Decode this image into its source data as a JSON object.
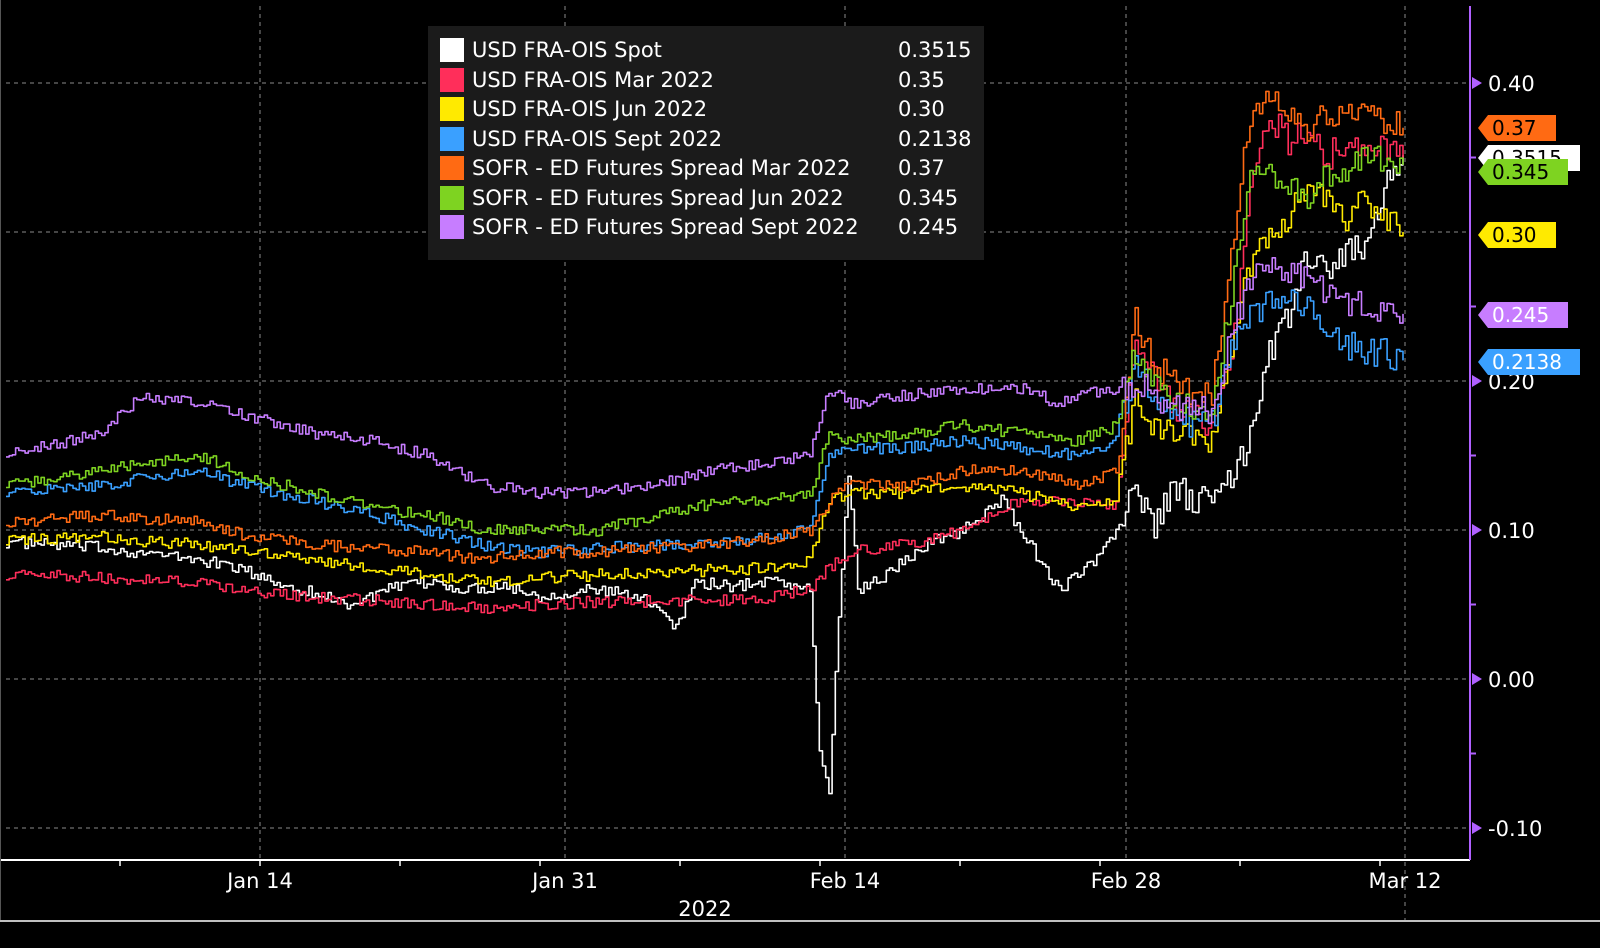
{
  "chart_data": {
    "type": "line",
    "x_labels": [
      "Jan 14",
      "Jan 31",
      "Feb 14",
      "Feb 28",
      "Mar 12"
    ],
    "x_axis_year": "2022",
    "y_ticks": [
      "0.40",
      "0.20",
      "0.10",
      "0.00",
      "-0.10"
    ],
    "ylim": [
      -0.12,
      0.45
    ],
    "grid": true,
    "legend_position": "top-center",
    "series": [
      {
        "name": "USD FRA-OIS Spot",
        "last": "0.3515",
        "color": "#ffffff",
        "anchors": [
          [
            0,
            0.092
          ],
          [
            5,
            0.088
          ],
          [
            10,
            0.08
          ],
          [
            12,
            0.075
          ],
          [
            14,
            0.065
          ],
          [
            16,
            0.058
          ],
          [
            18,
            0.05
          ],
          [
            20,
            0.06
          ],
          [
            22,
            0.065
          ],
          [
            24,
            0.06
          ],
          [
            26,
            0.063
          ],
          [
            28,
            0.055
          ],
          [
            30,
            0.06
          ],
          [
            32,
            0.058
          ],
          [
            34,
            0.05
          ],
          [
            35,
            0.035
          ],
          [
            36,
            0.065
          ],
          [
            38,
            0.062
          ],
          [
            40,
            0.067
          ],
          [
            42,
            0.06
          ],
          [
            42.5,
            -0.05
          ],
          [
            43,
            -0.075
          ],
          [
            43.5,
            0.04
          ],
          [
            44,
            0.14
          ],
          [
            44.5,
            0.06
          ],
          [
            46,
            0.07
          ],
          [
            48,
            0.09
          ],
          [
            50,
            0.1
          ],
          [
            52,
            0.12
          ],
          [
            54,
            0.08
          ],
          [
            55,
            0.06
          ],
          [
            56,
            0.07
          ],
          [
            57,
            0.08
          ],
          [
            58,
            0.1
          ],
          [
            59,
            0.13
          ],
          [
            60,
            0.1
          ],
          [
            61,
            0.13
          ],
          [
            62,
            0.12
          ],
          [
            63,
            0.12
          ],
          [
            64,
            0.135
          ],
          [
            65,
            0.16
          ],
          [
            66,
            0.22
          ],
          [
            67,
            0.245
          ],
          [
            68,
            0.285
          ],
          [
            69,
            0.27
          ],
          [
            70,
            0.29
          ],
          [
            71,
            0.285
          ],
          [
            72,
            0.33
          ],
          [
            73,
            0.3515
          ]
        ]
      },
      {
        "name": "USD FRA-OIS Mar 2022",
        "last": "0.35",
        "color": "#ff2e5a",
        "anchors": [
          [
            0,
            0.07
          ],
          [
            5,
            0.068
          ],
          [
            10,
            0.065
          ],
          [
            13,
            0.058
          ],
          [
            16,
            0.055
          ],
          [
            19,
            0.053
          ],
          [
            22,
            0.05
          ],
          [
            25,
            0.048
          ],
          [
            28,
            0.05
          ],
          [
            31,
            0.052
          ],
          [
            34,
            0.052
          ],
          [
            37,
            0.053
          ],
          [
            40,
            0.055
          ],
          [
            42,
            0.06
          ],
          [
            43,
            0.075
          ],
          [
            44,
            0.085
          ],
          [
            47,
            0.09
          ],
          [
            50,
            0.1
          ],
          [
            53,
            0.12
          ],
          [
            56,
            0.12
          ],
          [
            58,
            0.115
          ],
          [
            59,
            0.225
          ],
          [
            60,
            0.2
          ],
          [
            61,
            0.18
          ],
          [
            62,
            0.175
          ],
          [
            63,
            0.17
          ],
          [
            64,
            0.21
          ],
          [
            65,
            0.33
          ],
          [
            66,
            0.38
          ],
          [
            67,
            0.36
          ],
          [
            68,
            0.37
          ],
          [
            69,
            0.35
          ],
          [
            70,
            0.36
          ],
          [
            71,
            0.355
          ],
          [
            72,
            0.36
          ],
          [
            73,
            0.35
          ]
        ]
      },
      {
        "name": "USD FRA-OIS Jun 2022",
        "last": "0.30",
        "color": "#ffea00",
        "anchors": [
          [
            0,
            0.093
          ],
          [
            5,
            0.095
          ],
          [
            10,
            0.09
          ],
          [
            13,
            0.085
          ],
          [
            16,
            0.08
          ],
          [
            19,
            0.075
          ],
          [
            22,
            0.07
          ],
          [
            25,
            0.065
          ],
          [
            28,
            0.068
          ],
          [
            31,
            0.07
          ],
          [
            34,
            0.072
          ],
          [
            37,
            0.073
          ],
          [
            40,
            0.075
          ],
          [
            42,
            0.08
          ],
          [
            43,
            0.12
          ],
          [
            44,
            0.125
          ],
          [
            47,
            0.125
          ],
          [
            50,
            0.13
          ],
          [
            53,
            0.125
          ],
          [
            56,
            0.115
          ],
          [
            58,
            0.12
          ],
          [
            59,
            0.19
          ],
          [
            60,
            0.17
          ],
          [
            61,
            0.165
          ],
          [
            62,
            0.16
          ],
          [
            63,
            0.16
          ],
          [
            64,
            0.22
          ],
          [
            65,
            0.28
          ],
          [
            66,
            0.3
          ],
          [
            67,
            0.31
          ],
          [
            68,
            0.33
          ],
          [
            69,
            0.32
          ],
          [
            70,
            0.31
          ],
          [
            71,
            0.32
          ],
          [
            72,
            0.31
          ],
          [
            73,
            0.3
          ]
        ]
      },
      {
        "name": "USD FRA-OIS Sept 2022",
        "last": "0.2138",
        "color": "#3aa0ff",
        "anchors": [
          [
            0,
            0.125
          ],
          [
            5,
            0.13
          ],
          [
            10,
            0.14
          ],
          [
            13,
            0.128
          ],
          [
            16,
            0.12
          ],
          [
            19,
            0.11
          ],
          [
            22,
            0.1
          ],
          [
            25,
            0.09
          ],
          [
            28,
            0.085
          ],
          [
            31,
            0.088
          ],
          [
            34,
            0.09
          ],
          [
            37,
            0.092
          ],
          [
            40,
            0.095
          ],
          [
            42,
            0.1
          ],
          [
            43,
            0.15
          ],
          [
            44,
            0.155
          ],
          [
            47,
            0.155
          ],
          [
            50,
            0.16
          ],
          [
            53,
            0.155
          ],
          [
            56,
            0.15
          ],
          [
            58,
            0.16
          ],
          [
            59,
            0.21
          ],
          [
            60,
            0.19
          ],
          [
            61,
            0.18
          ],
          [
            62,
            0.17
          ],
          [
            63,
            0.17
          ],
          [
            64,
            0.22
          ],
          [
            65,
            0.25
          ],
          [
            66,
            0.25
          ],
          [
            67,
            0.26
          ],
          [
            68,
            0.25
          ],
          [
            69,
            0.23
          ],
          [
            70,
            0.225
          ],
          [
            71,
            0.22
          ],
          [
            72,
            0.22
          ],
          [
            73,
            0.2138
          ]
        ]
      },
      {
        "name": "SOFR - ED Futures Spread Mar 2022",
        "last": "0.37",
        "color": "#ff6a13",
        "anchors": [
          [
            0,
            0.105
          ],
          [
            5,
            0.11
          ],
          [
            10,
            0.105
          ],
          [
            13,
            0.095
          ],
          [
            16,
            0.09
          ],
          [
            19,
            0.088
          ],
          [
            22,
            0.085
          ],
          [
            25,
            0.08
          ],
          [
            28,
            0.085
          ],
          [
            31,
            0.085
          ],
          [
            34,
            0.088
          ],
          [
            37,
            0.09
          ],
          [
            40,
            0.095
          ],
          [
            42,
            0.1
          ],
          [
            43,
            0.12
          ],
          [
            44,
            0.13
          ],
          [
            47,
            0.13
          ],
          [
            50,
            0.14
          ],
          [
            53,
            0.14
          ],
          [
            56,
            0.13
          ],
          [
            58,
            0.14
          ],
          [
            59,
            0.24
          ],
          [
            60,
            0.21
          ],
          [
            61,
            0.2
          ],
          [
            62,
            0.19
          ],
          [
            63,
            0.19
          ],
          [
            64,
            0.29
          ],
          [
            65,
            0.38
          ],
          [
            66,
            0.39
          ],
          [
            67,
            0.38
          ],
          [
            68,
            0.37
          ],
          [
            69,
            0.38
          ],
          [
            70,
            0.38
          ],
          [
            71,
            0.385
          ],
          [
            72,
            0.375
          ],
          [
            73,
            0.37
          ]
        ]
      },
      {
        "name": "SOFR - ED Futures Spread Jun 2022",
        "last": "0.345",
        "color": "#7ed321",
        "anchors": [
          [
            0,
            0.13
          ],
          [
            5,
            0.14
          ],
          [
            10,
            0.15
          ],
          [
            13,
            0.135
          ],
          [
            16,
            0.125
          ],
          [
            19,
            0.115
          ],
          [
            22,
            0.11
          ],
          [
            25,
            0.1
          ],
          [
            28,
            0.1
          ],
          [
            31,
            0.1
          ],
          [
            34,
            0.11
          ],
          [
            37,
            0.118
          ],
          [
            40,
            0.12
          ],
          [
            42,
            0.125
          ],
          [
            43,
            0.165
          ],
          [
            44,
            0.16
          ],
          [
            47,
            0.165
          ],
          [
            50,
            0.17
          ],
          [
            53,
            0.165
          ],
          [
            56,
            0.16
          ],
          [
            58,
            0.17
          ],
          [
            59,
            0.22
          ],
          [
            60,
            0.195
          ],
          [
            61,
            0.19
          ],
          [
            62,
            0.18
          ],
          [
            63,
            0.18
          ],
          [
            64,
            0.26
          ],
          [
            65,
            0.34
          ],
          [
            66,
            0.34
          ],
          [
            67,
            0.33
          ],
          [
            68,
            0.32
          ],
          [
            69,
            0.34
          ],
          [
            70,
            0.34
          ],
          [
            71,
            0.35
          ],
          [
            72,
            0.35
          ],
          [
            73,
            0.345
          ]
        ]
      },
      {
        "name": "SOFR - ED Futures Spread Sept 2022",
        "last": "0.245",
        "color": "#c77dff",
        "anchors": [
          [
            0,
            0.15
          ],
          [
            5,
            0.165
          ],
          [
            7,
            0.19
          ],
          [
            10,
            0.185
          ],
          [
            13,
            0.175
          ],
          [
            16,
            0.165
          ],
          [
            19,
            0.16
          ],
          [
            22,
            0.15
          ],
          [
            25,
            0.13
          ],
          [
            28,
            0.125
          ],
          [
            31,
            0.125
          ],
          [
            34,
            0.13
          ],
          [
            37,
            0.14
          ],
          [
            40,
            0.145
          ],
          [
            42,
            0.15
          ],
          [
            43,
            0.195
          ],
          [
            44,
            0.185
          ],
          [
            47,
            0.19
          ],
          [
            50,
            0.195
          ],
          [
            53,
            0.195
          ],
          [
            55,
            0.185
          ],
          [
            56,
            0.19
          ],
          [
            58,
            0.195
          ],
          [
            59,
            0.2
          ],
          [
            60,
            0.19
          ],
          [
            61,
            0.185
          ],
          [
            62,
            0.18
          ],
          [
            63,
            0.18
          ],
          [
            64,
            0.23
          ],
          [
            65,
            0.27
          ],
          [
            66,
            0.28
          ],
          [
            67,
            0.27
          ],
          [
            68,
            0.27
          ],
          [
            69,
            0.26
          ],
          [
            70,
            0.25
          ],
          [
            71,
            0.25
          ],
          [
            72,
            0.25
          ],
          [
            73,
            0.245
          ]
        ]
      }
    ]
  }
}
